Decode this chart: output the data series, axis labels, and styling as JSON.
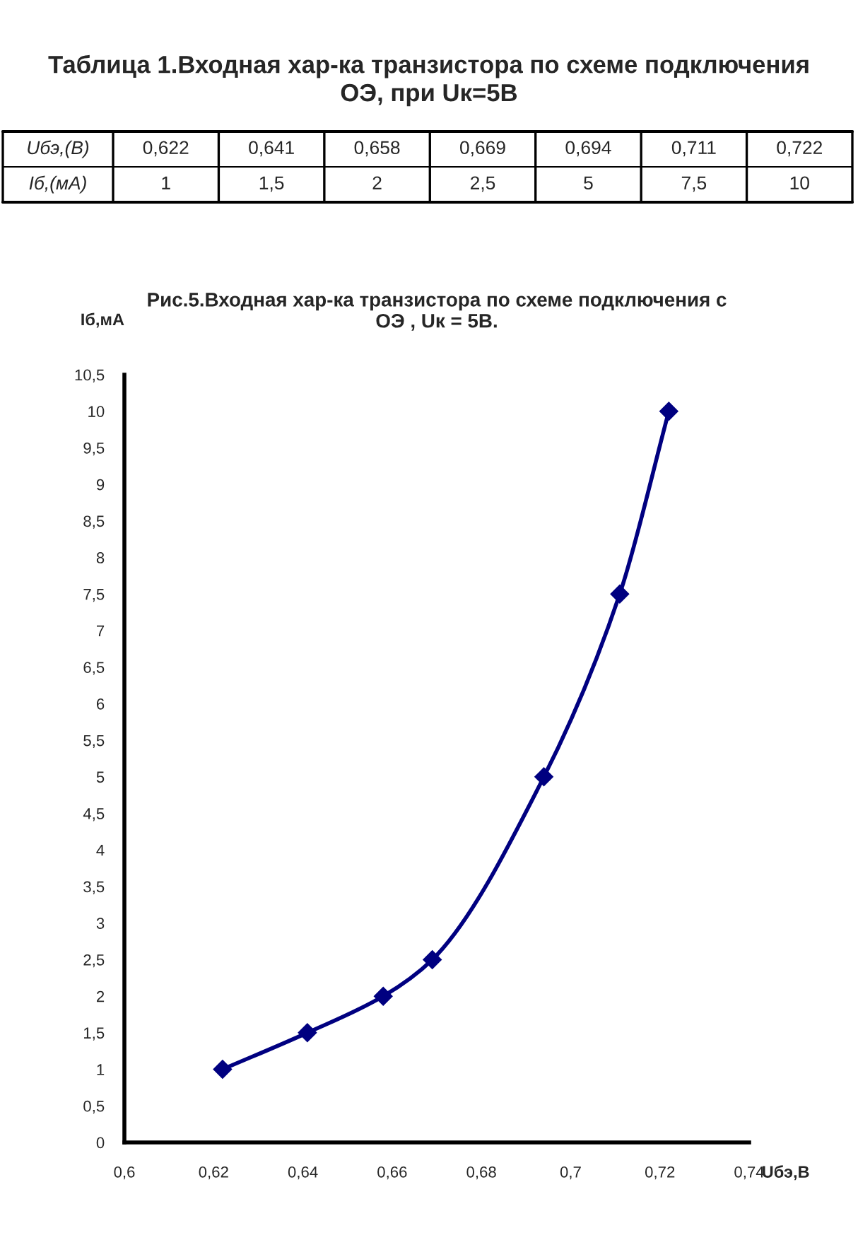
{
  "chart_data": {
    "type": "line",
    "title": "Рис.5.Входная хар-ка транзистора по схеме подключения с\nОЭ , Uк = 5В.",
    "xlabel": "Uбэ,В",
    "ylabel": "Iб,мА",
    "annotations": [
      "Таблица 1.Входная хар-ка транзистора по схеме подключения\nОЭ, при Uк=5В",
      "Uбэ,(В)",
      "0,622",
      "0,641",
      "0,658",
      "0,669",
      "0,694",
      "0,711",
      "0,722",
      "Iб,(мА)",
      "1",
      "1,5",
      "2",
      "2,5",
      "5",
      "7,5",
      "10"
    ],
    "x": [
      0.622,
      0.641,
      0.658,
      0.669,
      0.694,
      0.711,
      0.722
    ],
    "series": [
      {
        "color": "#000080",
        "values": [
          1,
          1.5,
          2,
          2.5,
          5,
          7.5,
          10
        ]
      }
    ],
    "xlim": [
      0.6,
      0.74
    ],
    "xticks": [
      {
        "value": 0.6,
        "label": "0,6"
      },
      {
        "value": 0.62,
        "label": "0,62"
      },
      {
        "value": 0.64,
        "label": "0,64"
      },
      {
        "value": 0.66,
        "label": "0,66"
      },
      {
        "value": 0.68,
        "label": "0,68"
      },
      {
        "value": 0.7,
        "label": "0,7"
      },
      {
        "value": 0.72,
        "label": "0,72"
      },
      {
        "value": 0.74,
        "label": "0,74"
      }
    ],
    "ylim": [
      0,
      10.5
    ],
    "yticks": [
      0,
      {
        "value": 0.5,
        "label": "0,5"
      },
      1,
      {
        "value": 1.5,
        "label": "1,5"
      },
      2,
      {
        "value": 2.5,
        "label": "2,5"
      },
      3,
      {
        "value": 3.5,
        "label": "3,5"
      },
      4,
      {
        "value": 4.5,
        "label": "4,5"
      },
      5,
      {
        "value": 5.5,
        "label": "5,5"
      },
      6,
      {
        "value": 6.5,
        "label": "6,5"
      },
      7,
      {
        "value": 7.5,
        "label": "7,5"
      },
      8,
      {
        "value": 8.5,
        "label": "8,5"
      },
      9,
      {
        "value": 9.5,
        "label": "9,5"
      },
      10,
      {
        "value": 10.5,
        "label": "10,5"
      }
    ],
    "grid": false,
    "marker": "diamond",
    "line_style": "solid"
  }
}
